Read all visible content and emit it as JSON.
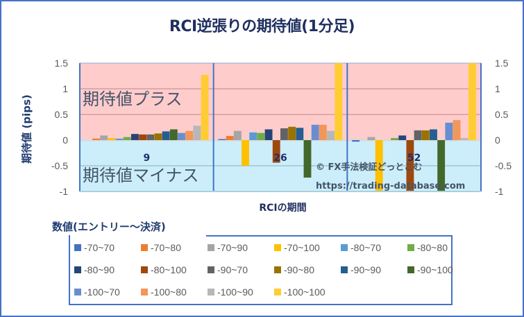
{
  "chart_data": {
    "type": "bar",
    "title": "RCI逆張りの期待値(1分足)",
    "xlabel": "RCIの期間",
    "ylabel": "期待値 (pips)",
    "ylim": [
      -1,
      1.5
    ],
    "yticks": [
      "1.5",
      "1",
      "0.5",
      "0",
      "-0.5",
      "-1"
    ],
    "ytick_values": [
      1.5,
      1,
      0.5,
      0,
      -0.5,
      -1
    ],
    "secondary_yticks": [
      "1.5",
      "1",
      "0.5",
      "0",
      "-0.5",
      "-1"
    ],
    "grid": true,
    "categories": [
      "9",
      "26",
      "52"
    ],
    "legend_title": "数値(エントリー～決済)",
    "legend_position": "bottom",
    "plus_region_label": "期待値プラス",
    "minus_region_label": "期待値マイナス",
    "plus_region_color": "#ffcccc",
    "minus_region_color": "#cceefa",
    "watermark": [
      "© FX手法検証どっとこむ",
      "https://trading-database.com"
    ],
    "series": [
      {
        "name": "-70~70",
        "color": "#4472c4",
        "values": [
          0.0,
          0.02,
          -0.03
        ]
      },
      {
        "name": "-70~80",
        "color": "#ed7d31",
        "values": [
          0.03,
          0.08,
          0.0
        ]
      },
      {
        "name": "-70~90",
        "color": "#a5a5a5",
        "values": [
          0.09,
          0.18,
          0.06
        ]
      },
      {
        "name": "-70~100",
        "color": "#ffc000",
        "values": [
          0.04,
          -0.5,
          -1.0
        ]
      },
      {
        "name": "-80~70",
        "color": "#5b9bd5",
        "values": [
          0.03,
          0.15,
          0.0
        ]
      },
      {
        "name": "-80~80",
        "color": "#70ad47",
        "values": [
          0.06,
          0.14,
          0.04
        ]
      },
      {
        "name": "-80~90",
        "color": "#264478",
        "values": [
          0.12,
          0.21,
          0.09
        ]
      },
      {
        "name": "-80~100",
        "color": "#9e480e",
        "values": [
          0.11,
          -0.44,
          -1.0
        ]
      },
      {
        "name": "-90~70",
        "color": "#636363",
        "values": [
          0.11,
          0.23,
          0.19
        ]
      },
      {
        "name": "-90~80",
        "color": "#997300",
        "values": [
          0.13,
          0.26,
          0.19
        ]
      },
      {
        "name": "-90~90",
        "color": "#255e91",
        "values": [
          0.17,
          0.24,
          0.21
        ]
      },
      {
        "name": "-90~100",
        "color": "#43682b",
        "values": [
          0.21,
          -0.73,
          -1.0
        ]
      },
      {
        "name": "-100~70",
        "color": "#698ed0",
        "values": [
          0.14,
          0.3,
          0.34
        ]
      },
      {
        "name": "-100~80",
        "color": "#f1975a",
        "values": [
          0.18,
          0.3,
          0.39
        ]
      },
      {
        "name": "-100~90",
        "color": "#b7b7b7",
        "values": [
          0.28,
          0.18,
          0.04
        ]
      },
      {
        "name": "-100~100",
        "color": "#ffcd33",
        "values": [
          1.27,
          1.5,
          1.5
        ]
      }
    ]
  }
}
